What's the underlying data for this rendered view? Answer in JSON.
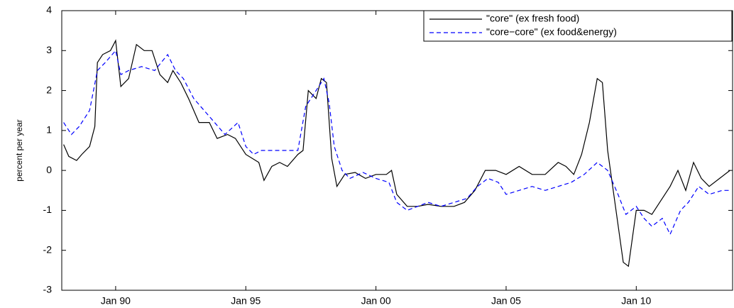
{
  "chart_data": {
    "type": "line",
    "y_label": "percent per year",
    "xlim": [
      1987.93,
      2013.7
    ],
    "ylim": [
      -3,
      4
    ],
    "xticks": [
      {
        "value": 1990,
        "label": "Jan 90"
      },
      {
        "value": 1995,
        "label": "Jan 95"
      },
      {
        "value": 2000,
        "label": "Jan 00"
      },
      {
        "value": 2005,
        "label": "Jan 05"
      },
      {
        "value": 2010,
        "label": "Jan 10"
      }
    ],
    "yticks": [
      -3,
      -2,
      -1,
      0,
      1,
      2,
      3,
      4
    ],
    "legend": "upper right",
    "series": [
      {
        "name": "\"core\" (ex fresh food)",
        "color": "#000000",
        "linestyle": "solid",
        "x": [
          1988.0,
          1988.2,
          1988.5,
          1988.7,
          1989.0,
          1989.2,
          1989.3,
          1989.5,
          1989.8,
          1990.0,
          1990.2,
          1990.5,
          1990.8,
          1991.1,
          1991.4,
          1991.7,
          1992.0,
          1992.2,
          1992.5,
          1992.8,
          1993.2,
          1993.6,
          1993.9,
          1994.3,
          1994.6,
          1995.0,
          1995.5,
          1995.7,
          1996.0,
          1996.3,
          1996.6,
          1997.0,
          1997.2,
          1997.4,
          1997.7,
          1997.9,
          1998.1,
          1998.3,
          1998.5,
          1998.8,
          1999.2,
          1999.6,
          2000.0,
          2000.4,
          2000.6,
          2000.8,
          2001.2,
          2001.6,
          2002.0,
          2002.5,
          2003.0,
          2003.4,
          2003.8,
          2004.2,
          2004.6,
          2005.0,
          2005.5,
          2006.0,
          2006.5,
          2007.0,
          2007.3,
          2007.6,
          2007.9,
          2008.2,
          2008.5,
          2008.7,
          2008.9,
          2009.2,
          2009.5,
          2009.7,
          2010.0,
          2010.3,
          2010.6,
          2010.9,
          2011.3,
          2011.6,
          2011.9,
          2012.2,
          2012.5,
          2012.8,
          2013.2,
          2013.6
        ],
        "values": [
          0.65,
          0.35,
          0.25,
          0.4,
          0.6,
          1.1,
          2.7,
          2.9,
          3.0,
          3.25,
          2.1,
          2.3,
          3.15,
          3.0,
          3.0,
          2.4,
          2.2,
          2.5,
          2.2,
          1.8,
          1.2,
          1.2,
          0.8,
          0.9,
          0.8,
          0.4,
          0.2,
          -0.25,
          0.1,
          0.2,
          0.1,
          0.4,
          0.5,
          2.0,
          1.8,
          2.3,
          2.2,
          0.3,
          -0.4,
          -0.1,
          -0.05,
          -0.2,
          -0.1,
          -0.1,
          0,
          -0.6,
          -0.9,
          -0.9,
          -0.85,
          -0.9,
          -0.9,
          -0.8,
          -0.5,
          0,
          0,
          -0.1,
          0.1,
          -0.1,
          -0.1,
          0.2,
          0.1,
          -0.1,
          0.4,
          1.2,
          2.3,
          2.2,
          0.5,
          -0.9,
          -2.3,
          -2.4,
          -1.0,
          -1.0,
          -1.1,
          -0.8,
          -0.4,
          0.0,
          -0.5,
          0.2,
          -0.2,
          -0.4,
          -0.2,
          0.0
        ]
      },
      {
        "name": "\"core−core\" (ex food&energy)",
        "color": "#0000ff",
        "linestyle": "dashed",
        "x": [
          1988.0,
          1988.3,
          1988.6,
          1989.0,
          1989.3,
          1989.6,
          1990.0,
          1990.2,
          1990.5,
          1991.0,
          1991.5,
          1992.0,
          1992.3,
          1992.6,
          1993.0,
          1993.4,
          1993.8,
          1994.2,
          1994.7,
          1995.0,
          1995.3,
          1995.6,
          1996.0,
          1996.5,
          1997.0,
          1997.3,
          1997.7,
          1998.0,
          1998.2,
          1998.4,
          1998.7,
          1999.0,
          1999.5,
          2000.0,
          2000.5,
          2000.8,
          2001.2,
          2001.6,
          2002.0,
          2002.5,
          2003.0,
          2003.5,
          2003.9,
          2004.3,
          2004.7,
          2005.0,
          2005.5,
          2006.0,
          2006.5,
          2007.0,
          2007.5,
          2008.0,
          2008.5,
          2008.9,
          2009.3,
          2009.6,
          2010.0,
          2010.3,
          2010.6,
          2011.0,
          2011.3,
          2011.7,
          2012.0,
          2012.4,
          2012.8,
          2013.3,
          2013.6
        ],
        "values": [
          1.2,
          0.9,
          1.1,
          1.5,
          2.5,
          2.7,
          3.0,
          2.4,
          2.5,
          2.6,
          2.5,
          2.9,
          2.5,
          2.3,
          1.8,
          1.5,
          1.2,
          0.9,
          1.2,
          0.6,
          0.4,
          0.5,
          0.5,
          0.5,
          0.5,
          1.6,
          2.0,
          2.3,
          1.7,
          0.6,
          0,
          -0.2,
          -0.05,
          -0.2,
          -0.3,
          -0.8,
          -1.0,
          -0.9,
          -0.8,
          -0.9,
          -0.8,
          -0.7,
          -0.4,
          -0.2,
          -0.3,
          -0.6,
          -0.5,
          -0.4,
          -0.5,
          -0.4,
          -0.3,
          -0.1,
          0.2,
          0.0,
          -0.6,
          -1.1,
          -0.9,
          -1.2,
          -1.4,
          -1.2,
          -1.6,
          -1.0,
          -0.8,
          -0.4,
          -0.6,
          -0.5,
          -0.5
        ]
      }
    ]
  }
}
